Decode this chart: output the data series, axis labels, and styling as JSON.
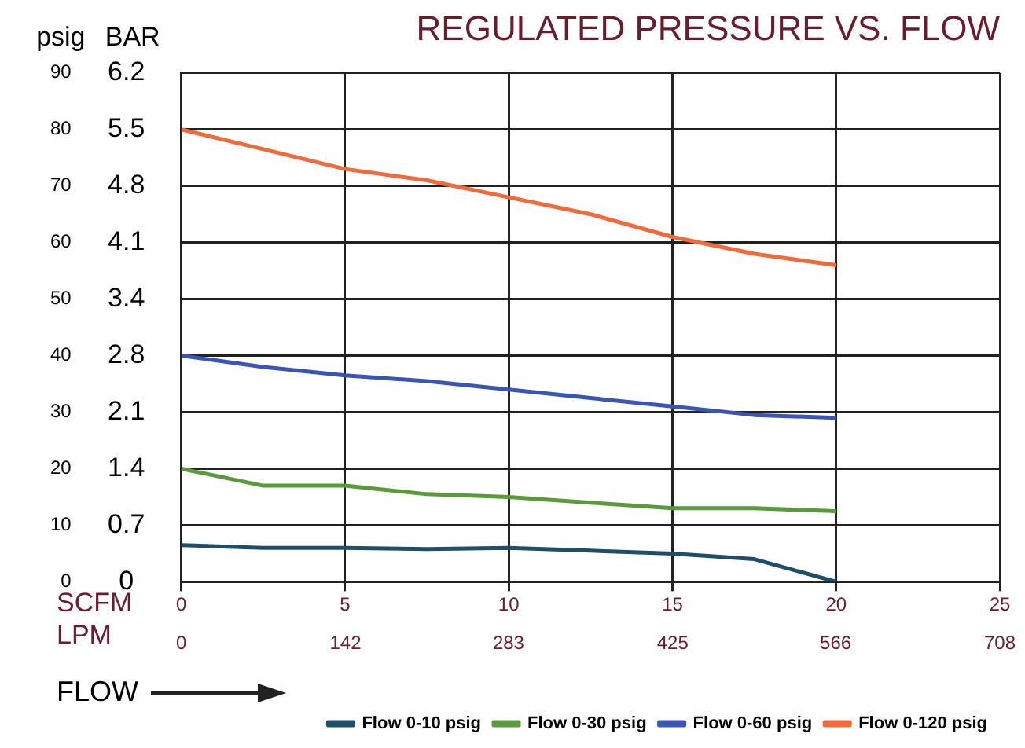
{
  "chart_data": {
    "type": "line",
    "title": "REGULATED PRESSURE VS. FLOW",
    "ylabel": "psig",
    "y2label": "BAR",
    "xlabel": "SCFM",
    "x2label": "LPM",
    "xlim": [
      0,
      25
    ],
    "xticks": [
      0,
      5,
      10,
      15,
      20,
      25
    ],
    "x2lim": [
      0,
      708
    ],
    "x2ticks": [
      0,
      142,
      283,
      425,
      566,
      708
    ],
    "ylim": [
      0,
      90
    ],
    "yticks": [
      0,
      10,
      20,
      30,
      40,
      50,
      60,
      70,
      80,
      90
    ],
    "y2lim": [
      0,
      6.205
    ],
    "y2ticks": [
      0,
      {
        "value": 0.689,
        "label": "0.7"
      },
      {
        "value": 1.379,
        "label": "1.4"
      },
      {
        "value": 2.068,
        "label": "2.1"
      },
      {
        "value": 2.758,
        "label": "2.8"
      },
      {
        "value": 3.447,
        "label": "3.4"
      },
      {
        "value": 4.137,
        "label": "4.1"
      },
      {
        "value": 4.826,
        "label": "4.8"
      },
      {
        "value": 5.516,
        "label": "5.5"
      },
      {
        "value": 6.205,
        "label": "6.2"
      }
    ],
    "grid": true,
    "legend": "bottom right",
    "marker": "none",
    "line_style": "solid",
    "annotations": [
      "FLOW"
    ],
    "series": [
      {
        "name": "Flow 0-10 psig",
        "color": "#1f4e6b",
        "x": [
          0,
          2.5,
          5,
          7.5,
          10,
          12.5,
          15,
          17.5,
          20
        ],
        "values": [
          6.5,
          6,
          6,
          5.8,
          6,
          5.5,
          5,
          4,
          0
        ]
      },
      {
        "name": "Flow 0-30 psig",
        "color": "#5a9a3a",
        "x": [
          0,
          2.5,
          5,
          7.5,
          10,
          12.5,
          15,
          17.5,
          20
        ],
        "values": [
          20,
          17,
          17,
          15.5,
          15,
          14,
          13,
          13,
          12.5
        ]
      },
      {
        "name": "Flow 0-60 psig",
        "color": "#3a55b5",
        "x": [
          0,
          2.5,
          5,
          7.5,
          10,
          12.5,
          15,
          17.5,
          20
        ],
        "values": [
          40,
          38,
          36.5,
          35.5,
          34,
          32.5,
          31,
          29.5,
          29
        ]
      },
      {
        "name": "Flow 0-120 psig",
        "color": "#f26a3a",
        "x": [
          0,
          2.5,
          5,
          7.5,
          10,
          12.5,
          15,
          17.5,
          20
        ],
        "values": [
          80,
          76.5,
          73,
          71,
          68,
          65,
          61,
          58,
          56
        ]
      }
    ]
  }
}
